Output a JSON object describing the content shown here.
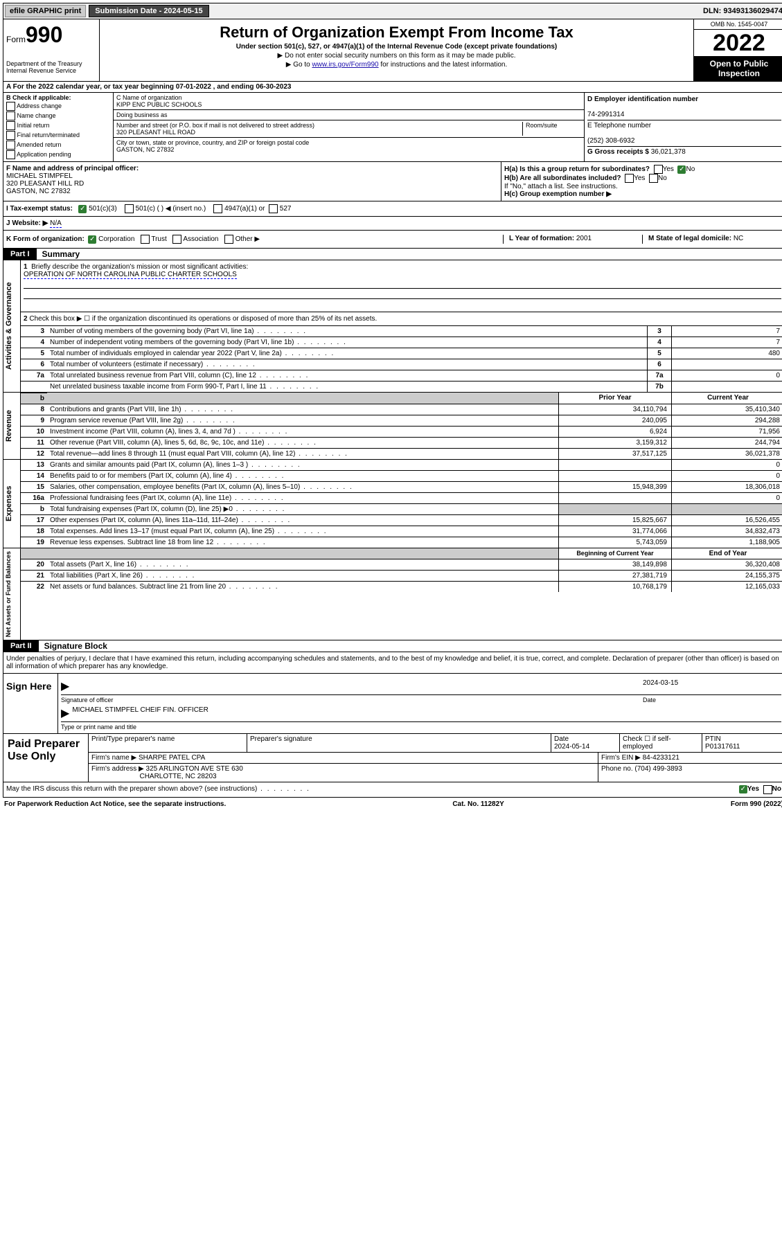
{
  "topbar": {
    "efile": "efile GRAPHIC print",
    "submission_label": "Submission Date - 2024-05-15",
    "dln": "DLN: 93493136029474"
  },
  "header": {
    "form_label": "Form",
    "form_num": "990",
    "dept": "Department of the Treasury Internal Revenue Service",
    "title": "Return of Organization Exempt From Income Tax",
    "subtitle": "Under section 501(c), 527, or 4947(a)(1) of the Internal Revenue Code (except private foundations)",
    "note1": "▶ Do not enter social security numbers on this form as it may be made public.",
    "note2_pre": "▶ Go to ",
    "note2_link": "www.irs.gov/Form990",
    "note2_post": " for instructions and the latest information.",
    "omb": "OMB No. 1545-0047",
    "year": "2022",
    "inspect": "Open to Public Inspection"
  },
  "a": {
    "text": "A For the 2022 calendar year, or tax year beginning 07-01-2022   , and ending 06-30-2023"
  },
  "b": {
    "header": "B Check if applicable:",
    "opts": [
      "Address change",
      "Name change",
      "Initial return",
      "Final return/terminated",
      "Amended return",
      "Application pending"
    ]
  },
  "c": {
    "name_label": "C Name of organization",
    "name": "KIPP ENC PUBLIC SCHOOLS",
    "dba_label": "Doing business as",
    "dba": "",
    "addr_label": "Number and street (or P.O. box if mail is not delivered to street address)",
    "room_label": "Room/suite",
    "addr": "320 PLEASANT HILL ROAD",
    "city_label": "City or town, state or province, country, and ZIP or foreign postal code",
    "city": "GASTON, NC  27832"
  },
  "d": {
    "ein_label": "D Employer identification number",
    "ein": "74-2991314",
    "tel_label": "E Telephone number",
    "tel": "(252) 308-6932",
    "gross_label": "G Gross receipts $",
    "gross": "36,021,378"
  },
  "f": {
    "label": "F  Name and address of principal officer:",
    "name": "MICHAEL STIMPFEL",
    "addr1": "320 PLEASANT HILL RD",
    "addr2": "GASTON, NC  27832"
  },
  "h": {
    "a_label": "H(a)  Is this a group return for subordinates?",
    "a_yes": "Yes",
    "a_no": "No",
    "b_label": "H(b)  Are all subordinates included?",
    "b_yes": "Yes",
    "b_no": "No",
    "b_note": "If \"No,\" attach a list. See instructions.",
    "c_label": "H(c)  Group exemption number ▶"
  },
  "i": {
    "label": "I   Tax-exempt status:",
    "opt1": "501(c)(3)",
    "opt2": "501(c) (  ) ◀ (insert no.)",
    "opt3": "4947(a)(1) or",
    "opt4": "527"
  },
  "j": {
    "label": "J   Website: ▶",
    "value": "N/A"
  },
  "k": {
    "label": "K Form of organization:",
    "opts": [
      "Corporation",
      "Trust",
      "Association",
      "Other ▶"
    ],
    "l_label": "L Year of formation:",
    "l_val": "2001",
    "m_label": "M State of legal domicile:",
    "m_val": "NC"
  },
  "part1": {
    "label": "Part I",
    "title": "Summary",
    "q1_label": "1",
    "q1": "Briefly describe the organization's mission or most significant activities:",
    "q1_val": "OPERATION OF NORTH CAROLINA PUBLIC CHARTER SCHOOLS",
    "q2_label": "2",
    "q2": "Check this box ▶ ☐  if the organization discontinued its operations or disposed of more than 25% of its net assets.",
    "lines_ag": [
      {
        "n": "3",
        "d": "Number of voting members of the governing body (Part VI, line 1a)",
        "box": "3",
        "v": "7"
      },
      {
        "n": "4",
        "d": "Number of independent voting members of the governing body (Part VI, line 1b)",
        "box": "4",
        "v": "7"
      },
      {
        "n": "5",
        "d": "Total number of individuals employed in calendar year 2022 (Part V, line 2a)",
        "box": "5",
        "v": "480"
      },
      {
        "n": "6",
        "d": "Total number of volunteers (estimate if necessary)",
        "box": "6",
        "v": ""
      },
      {
        "n": "7a",
        "d": "Total unrelated business revenue from Part VIII, column (C), line 12",
        "box": "7a",
        "v": "0"
      },
      {
        "n": "",
        "d": "Net unrelated business taxable income from Form 990-T, Part I, line 11",
        "box": "7b",
        "v": ""
      }
    ],
    "col_prior": "Prior Year",
    "col_current": "Current Year",
    "rev": [
      {
        "n": "8",
        "d": "Contributions and grants (Part VIII, line 1h)",
        "p": "34,110,794",
        "c": "35,410,340"
      },
      {
        "n": "9",
        "d": "Program service revenue (Part VIII, line 2g)",
        "p": "240,095",
        "c": "294,288"
      },
      {
        "n": "10",
        "d": "Investment income (Part VIII, column (A), lines 3, 4, and 7d )",
        "p": "6,924",
        "c": "71,956"
      },
      {
        "n": "11",
        "d": "Other revenue (Part VIII, column (A), lines 5, 6d, 8c, 9c, 10c, and 11e)",
        "p": "3,159,312",
        "c": "244,794"
      },
      {
        "n": "12",
        "d": "Total revenue—add lines 8 through 11 (must equal Part VIII, column (A), line 12)",
        "p": "37,517,125",
        "c": "36,021,378"
      }
    ],
    "exp": [
      {
        "n": "13",
        "d": "Grants and similar amounts paid (Part IX, column (A), lines 1–3 )",
        "p": "",
        "c": "0"
      },
      {
        "n": "14",
        "d": "Benefits paid to or for members (Part IX, column (A), line 4)",
        "p": "",
        "c": "0"
      },
      {
        "n": "15",
        "d": "Salaries, other compensation, employee benefits (Part IX, column (A), lines 5–10)",
        "p": "15,948,399",
        "c": "18,306,018"
      },
      {
        "n": "16a",
        "d": "Professional fundraising fees (Part IX, column (A), line 11e)",
        "p": "",
        "c": "0"
      },
      {
        "n": "b",
        "d": "Total fundraising expenses (Part IX, column (D), line 25) ▶0",
        "p": "GREY",
        "c": "GREY"
      },
      {
        "n": "17",
        "d": "Other expenses (Part IX, column (A), lines 11a–11d, 11f–24e)",
        "p": "15,825,667",
        "c": "16,526,455"
      },
      {
        "n": "18",
        "d": "Total expenses. Add lines 13–17 (must equal Part IX, column (A), line 25)",
        "p": "31,774,066",
        "c": "34,832,473"
      },
      {
        "n": "19",
        "d": "Revenue less expenses. Subtract line 18 from line 12",
        "p": "5,743,059",
        "c": "1,188,905"
      }
    ],
    "col_begin": "Beginning of Current Year",
    "col_end": "End of Year",
    "net": [
      {
        "n": "20",
        "d": "Total assets (Part X, line 16)",
        "p": "38,149,898",
        "c": "36,320,408"
      },
      {
        "n": "21",
        "d": "Total liabilities (Part X, line 26)",
        "p": "27,381,719",
        "c": "24,155,375"
      },
      {
        "n": "22",
        "d": "Net assets or fund balances. Subtract line 21 from line 20",
        "p": "10,768,179",
        "c": "12,165,033"
      }
    ],
    "side_ag": "Activities & Governance",
    "side_rev": "Revenue",
    "side_exp": "Expenses",
    "side_net": "Net Assets or Fund Balances"
  },
  "part2": {
    "label": "Part II",
    "title": "Signature Block",
    "penalty": "Under penalties of perjury, I declare that I have examined this return, including accompanying schedules and statements, and to the best of my knowledge and belief, it is true, correct, and complete. Declaration of preparer (other than officer) is based on all information of which preparer has any knowledge.",
    "sign_here": "Sign Here",
    "sig_officer": "Signature of officer",
    "sig_date": "2024-03-15",
    "date_label": "Date",
    "officer_name": "MICHAEL STIMPFEL CHEIF FIN. OFFICER",
    "type_name": "Type or print name and title"
  },
  "preparer": {
    "title": "Paid Preparer Use Only",
    "h_name": "Print/Type preparer's name",
    "h_sig": "Preparer's signature",
    "h_date": "Date",
    "date": "2024-05-14",
    "check_label": "Check ☐ if self-employed",
    "ptin_label": "PTIN",
    "ptin": "P01317611",
    "firm_name_label": "Firm's name    ▶",
    "firm_name": "SHARPE PATEL CPA",
    "firm_ein_label": "Firm's EIN ▶",
    "firm_ein": "84-4233121",
    "firm_addr_label": "Firm's address ▶",
    "firm_addr1": "325 ARLINGTON AVE STE 630",
    "firm_addr2": "CHARLOTTE, NC  28203",
    "phone_label": "Phone no.",
    "phone": "(704) 499-3893",
    "discuss": "May the IRS discuss this return with the preparer shown above? (see instructions)",
    "yes": "Yes",
    "no": "No"
  },
  "footer": {
    "left": "For Paperwork Reduction Act Notice, see the separate instructions.",
    "mid": "Cat. No. 11282Y",
    "right": "Form 990 (2022)"
  }
}
